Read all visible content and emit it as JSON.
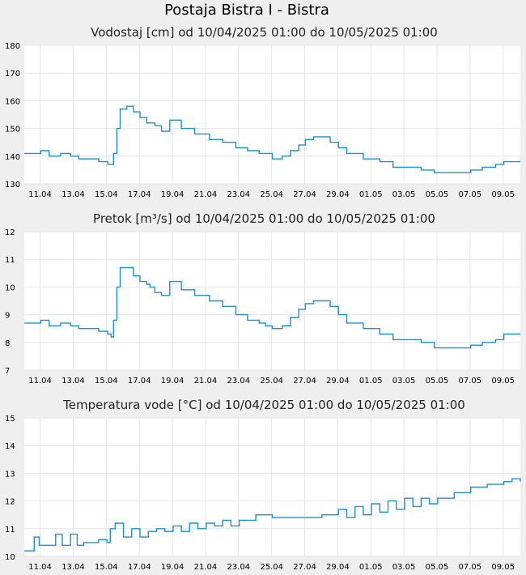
{
  "page": {
    "title": "Postaja Bistra I - Bistra"
  },
  "colors": {
    "background": "#efefef",
    "plot_background": "#ffffff",
    "grid": "#e6e6e6",
    "series": "#1f8fd6"
  },
  "chart_data": [
    {
      "type": "line",
      "title": "Vodostaj [cm] od 10/04/2025 01:00 do 10/05/2025 01:00",
      "xlabel": "",
      "ylabel": "",
      "grid": true,
      "x_range": [
        "10.04 01:00",
        "10.05 01:00"
      ],
      "ylim": [
        130,
        180
      ],
      "yticks": [
        130,
        140,
        150,
        160,
        170,
        180
      ],
      "xtick_labels": [
        "11.04",
        "13.04",
        "15.04",
        "17.04",
        "19.04",
        "21.04",
        "23.04",
        "25.04",
        "27.04",
        "29.04",
        "01.05",
        "03.05",
        "05.05",
        "07.05",
        "09.05"
      ],
      "x_days": [
        0,
        1,
        1.5,
        2.2,
        2.8,
        3.3,
        4,
        4.5,
        4.9,
        5.05,
        5.25,
        5.4,
        5.6,
        5.8,
        6.2,
        6.6,
        7.0,
        7.4,
        7.6,
        7.9,
        8.3,
        8.8,
        9.5,
        10.3,
        11.2,
        12.0,
        12.8,
        13.5,
        14.2,
        14.6,
        15.0,
        15.6,
        16.1,
        16.6,
        17.0,
        17.5,
        18.0,
        18.5,
        19.0,
        19.5,
        20.5,
        21.5,
        22.3,
        23.0,
        24.0,
        24.8,
        25.5,
        26.5,
        27.0,
        27.7,
        28.5,
        29.0,
        30.0
      ],
      "values": [
        141,
        142,
        140,
        141,
        140,
        139,
        139,
        138,
        138,
        137,
        137,
        141,
        150,
        157,
        158,
        156,
        154,
        152,
        152,
        151,
        149,
        153,
        150,
        148,
        146,
        145,
        143,
        142,
        141,
        141,
        139,
        140,
        142,
        144,
        146,
        147,
        147,
        145,
        143,
        141,
        139,
        138,
        136,
        136,
        135,
        134,
        134,
        134,
        135,
        136,
        137,
        138,
        138
      ]
    },
    {
      "type": "line",
      "title": "Pretok [m³/s] od 10/04/2025 01:00 do 10/05/2025 01:00",
      "xlabel": "",
      "ylabel": "",
      "grid": true,
      "x_range": [
        "10.04 01:00",
        "10.05 01:00"
      ],
      "ylim": [
        7,
        12
      ],
      "yticks": [
        7,
        8,
        9,
        10,
        11,
        12
      ],
      "xtick_labels": [
        "11.04",
        "13.04",
        "15.04",
        "17.04",
        "19.04",
        "21.04",
        "23.04",
        "25.04",
        "27.04",
        "29.04",
        "01.05",
        "03.05",
        "05.05",
        "07.05",
        "09.05"
      ],
      "x_days": [
        0,
        1,
        1.5,
        2.2,
        2.8,
        3.3,
        4,
        4.5,
        4.9,
        5.05,
        5.25,
        5.4,
        5.6,
        5.8,
        6.2,
        6.6,
        7.0,
        7.4,
        7.6,
        7.9,
        8.3,
        8.8,
        9.5,
        10.3,
        11.2,
        12.0,
        12.8,
        13.5,
        14.2,
        14.6,
        15.0,
        15.6,
        16.1,
        16.6,
        17.0,
        17.5,
        18.0,
        18.5,
        19.0,
        19.5,
        20.5,
        21.5,
        22.3,
        23.0,
        24.0,
        24.8,
        25.5,
        26.5,
        27.0,
        27.7,
        28.5,
        29.0,
        30.0
      ],
      "values": [
        8.7,
        8.8,
        8.6,
        8.7,
        8.6,
        8.5,
        8.5,
        8.4,
        8.4,
        8.3,
        8.2,
        8.8,
        10.0,
        10.7,
        10.7,
        10.4,
        10.2,
        10.1,
        10.0,
        9.8,
        9.7,
        10.2,
        9.9,
        9.7,
        9.5,
        9.3,
        9.0,
        8.8,
        8.7,
        8.6,
        8.5,
        8.6,
        8.9,
        9.2,
        9.4,
        9.5,
        9.5,
        9.3,
        9.0,
        8.7,
        8.5,
        8.3,
        8.1,
        8.1,
        8.0,
        7.8,
        7.8,
        7.8,
        7.9,
        8.0,
        8.1,
        8.3,
        8.3
      ]
    },
    {
      "type": "line",
      "title": "Temperatura vode [°C] od 10/04/2025 01:00 do 10/05/2025 01:00",
      "xlabel": "",
      "ylabel": "",
      "grid": true,
      "x_range": [
        "10.04 01:00",
        "10.05 01:00"
      ],
      "ylim": [
        10,
        15
      ],
      "yticks": [
        10,
        11,
        12,
        13,
        14,
        15
      ],
      "xtick_labels": [
        "11.04",
        "13.04",
        "15.04",
        "17.04",
        "19.04",
        "21.04",
        "23.04",
        "25.04",
        "27.04",
        "29.04",
        "01.05",
        "03.05",
        "05.05",
        "07.05",
        "09.05"
      ],
      "x_days": [
        0,
        0.3,
        0.6,
        0.9,
        1.5,
        1.9,
        2.3,
        2.8,
        3.2,
        3.6,
        4.1,
        4.5,
        5.0,
        5.2,
        5.5,
        6.0,
        6.5,
        7.0,
        7.5,
        8.0,
        8.5,
        9.0,
        9.5,
        10.0,
        10.5,
        11.0,
        11.5,
        12.0,
        12.5,
        13.0,
        13.5,
        14.0,
        15.0,
        16.0,
        17.0,
        18.0,
        19.0,
        19.5,
        20.0,
        20.5,
        21.0,
        21.5,
        22.0,
        22.5,
        23.0,
        23.5,
        24.0,
        24.5,
        25.0,
        25.5,
        26.0,
        26.5,
        27.0,
        27.5,
        28.0,
        28.5,
        29.0,
        29.5,
        30.0
      ],
      "values": [
        10.2,
        10.2,
        10.7,
        10.4,
        10.4,
        10.8,
        10.4,
        10.8,
        10.4,
        10.5,
        10.5,
        10.6,
        10.5,
        11.0,
        11.2,
        10.7,
        11.0,
        10.7,
        10.9,
        11.0,
        10.9,
        11.1,
        10.9,
        11.2,
        11.0,
        11.2,
        11.1,
        11.3,
        11.1,
        11.3,
        11.3,
        11.5,
        11.4,
        11.4,
        11.4,
        11.5,
        11.7,
        11.4,
        11.8,
        11.5,
        11.9,
        11.6,
        12.0,
        11.7,
        12.1,
        11.8,
        12.1,
        11.9,
        12.1,
        12.1,
        12.3,
        12.3,
        12.5,
        12.5,
        12.6,
        12.6,
        12.7,
        12.8,
        12.7
      ]
    }
  ]
}
